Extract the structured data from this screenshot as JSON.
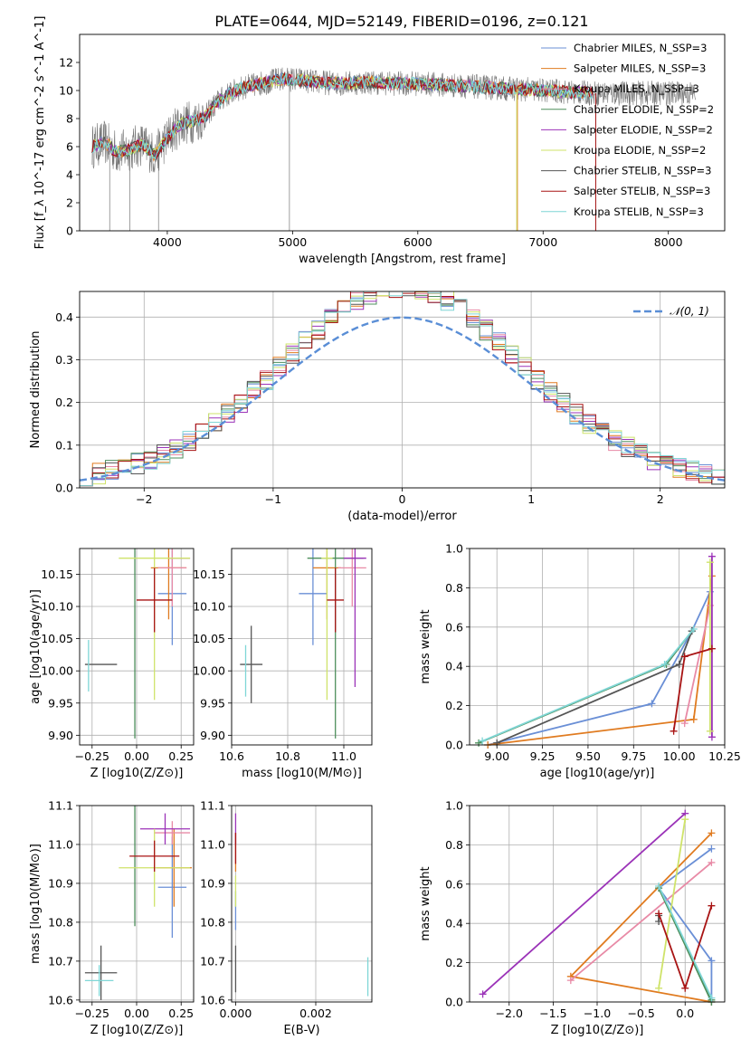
{
  "figure": {
    "title": "PLATE=0644, MJD=52149, FIBERID=0196, z=0.121"
  },
  "colors": {
    "chabrier_miles": "#6a8fd6",
    "salpeter_miles": "#e07b20",
    "kroupa_miles": "#e88aa6",
    "chabrier_elodie": "#4e8f5c",
    "salpeter_elodie": "#9b33b8",
    "kroupa_elodie": "#cfe36a",
    "chabrier_stelib": "#555555",
    "salpeter_stelib": "#a81414",
    "kroupa_stelib": "#7fd6d6",
    "observed": "#777777",
    "normal": "#5a8ed6",
    "grid": "#b0b0b0"
  },
  "chart_data": [
    {
      "id": "spectrum",
      "type": "line",
      "xlabel": "wavelength [Angstrom, rest frame]",
      "ylabel": "Flux [f_λ 10^-17 erg cm^-2 s^-1 A^-1]",
      "xlim": [
        3300,
        8450
      ],
      "ylim": [
        0,
        14
      ],
      "xticks": [
        4000,
        5000,
        6000,
        7000,
        8000
      ],
      "yticks": [
        0,
        2,
        4,
        6,
        8,
        10,
        12
      ],
      "grid": false,
      "legend_position": "top-right",
      "legend": [
        {
          "label": "Chabrier MILES, N_SSP=3",
          "color": "#6a8fd6"
        },
        {
          "label": "Salpeter MILES, N_SSP=3",
          "color": "#e07b20"
        },
        {
          "label": "Kroupa MILES, N_SSP=3",
          "color": "#e88aa6"
        },
        {
          "label": "Chabrier ELODIE, N_SSP=2",
          "color": "#4e8f5c"
        },
        {
          "label": "Salpeter ELODIE, N_SSP=2",
          "color": "#9b33b8"
        },
        {
          "label": "Kroupa ELODIE, N_SSP=2",
          "color": "#cfe36a"
        },
        {
          "label": "Chabrier STELIB, N_SSP=3",
          "color": "#555555"
        },
        {
          "label": "Salpeter STELIB, N_SSP=3",
          "color": "#a81414"
        },
        {
          "label": "Kroupa STELIB, N_SSP=3",
          "color": "#7fd6d6"
        }
      ],
      "model_curve": {
        "x": [
          3400,
          3500,
          3600,
          3700,
          3800,
          3900,
          4000,
          4100,
          4200,
          4300,
          4400,
          4500,
          4600,
          4700,
          4800,
          4900,
          5000,
          5200,
          5400,
          5600,
          5800,
          6000,
          6200,
          6400,
          6600,
          6800,
          7000,
          7200,
          7400
        ],
        "y": [
          6.0,
          6.3,
          5.6,
          5.8,
          6.2,
          5.4,
          6.6,
          7.6,
          7.8,
          8.1,
          9.2,
          9.8,
          10.2,
          10.4,
          10.6,
          10.8,
          10.8,
          10.6,
          10.5,
          10.6,
          10.5,
          10.5,
          10.4,
          10.3,
          10.2,
          10.1,
          10.0,
          9.9,
          9.8
        ]
      },
      "observed_range": {
        "xmin": 3400,
        "xmax": 8220
      }
    },
    {
      "id": "residuals",
      "type": "step-histogram",
      "xlabel": "(data-model)/error",
      "ylabel": "Normed distribution",
      "xlim": [
        -2.5,
        2.5
      ],
      "ylim": [
        0,
        0.46
      ],
      "xticks": [
        -2,
        -1,
        0,
        1,
        2
      ],
      "yticks": [
        0.0,
        0.1,
        0.2,
        0.3,
        0.4
      ],
      "grid": true,
      "legend_position": "top-right",
      "legend": [
        {
          "label": "𝒩(0, 1)",
          "color": "#5a8ed6",
          "style": "dashed"
        }
      ],
      "bin_width": 0.1,
      "reference_curve": "normal pdf, mean 0, sigma 1"
    },
    {
      "id": "age_vs_z",
      "type": "errorbar",
      "xlabel": "Z [log10(Z/Z⊙)]",
      "ylabel": "age  [log10(age/yr)]",
      "xlim": [
        -0.32,
        0.32
      ],
      "ylim": [
        9.885,
        10.19
      ],
      "xticks": [
        -0.25,
        0.0,
        0.25
      ],
      "yticks": [
        9.9,
        9.95,
        10.0,
        10.05,
        10.1,
        10.15
      ],
      "grid": true,
      "points": [
        {
          "series": "Chabrier MILES",
          "x": 0.2,
          "y": 10.12,
          "xerr": 0.08,
          "yerr": 0.08
        },
        {
          "series": "Salpeter MILES",
          "x": 0.18,
          "y": 10.16,
          "xerr": 0.1,
          "yerr": 0.08
        },
        {
          "series": "Kroupa MILES",
          "x": 0.2,
          "y": 10.16,
          "xerr": 0.08,
          "yerr": 0.06
        },
        {
          "series": "Chabrier ELODIE",
          "x": -0.01,
          "y": 10.175,
          "xerr": 0.0,
          "yerr": 0.28
        },
        {
          "series": "Salpeter ELODIE",
          "x": 0.24,
          "y": 10.175,
          "xerr": 0.06,
          "yerr": 0.0
        },
        {
          "series": "Kroupa ELODIE",
          "x": 0.1,
          "y": 10.175,
          "xerr": 0.2,
          "yerr": 0.22
        },
        {
          "series": "Chabrier STELIB",
          "x": -0.2,
          "y": 10.01,
          "xerr": 0.09,
          "yerr": 0.0
        },
        {
          "series": "Salpeter STELIB",
          "x": 0.1,
          "y": 10.11,
          "xerr": 0.1,
          "yerr": 0.05
        },
        {
          "series": "Kroupa STELIB",
          "x": -0.27,
          "y": 10.008,
          "xerr": 0.0,
          "yerr": 0.04
        }
      ]
    },
    {
      "id": "age_vs_mass",
      "type": "errorbar",
      "xlabel": "mass [log10(M/M⊙)]",
      "ylabel": "",
      "xlim": [
        10.6,
        11.1
      ],
      "ylim": [
        9.885,
        10.19
      ],
      "xticks": [
        10.6,
        10.8,
        11.0
      ],
      "yticks": [
        9.9,
        9.95,
        10.0,
        10.05,
        10.1,
        10.15
      ],
      "grid": true,
      "points": [
        {
          "series": "Chabrier MILES",
          "x": 10.89,
          "y": 10.12,
          "xerr": 0.05,
          "yerr": 0.08
        },
        {
          "series": "Salpeter MILES",
          "x": 10.94,
          "y": 10.16,
          "xerr": 0.05,
          "yerr": 0.08
        },
        {
          "series": "Kroupa MILES",
          "x": 11.03,
          "y": 10.16,
          "xerr": 0.05,
          "yerr": 0.06
        },
        {
          "series": "Chabrier ELODIE",
          "x": 10.97,
          "y": 10.175,
          "xerr": 0.1,
          "yerr": 0.28
        },
        {
          "series": "Salpeter ELODIE",
          "x": 11.04,
          "y": 10.175,
          "xerr": 0.04,
          "yerr": 0.2
        },
        {
          "series": "Kroupa ELODIE",
          "x": 10.94,
          "y": 10.175,
          "xerr": 0.02,
          "yerr": 0.22
        },
        {
          "series": "Chabrier STELIB",
          "x": 10.67,
          "y": 10.01,
          "xerr": 0.04,
          "yerr": 0.06
        },
        {
          "series": "Salpeter STELIB",
          "x": 10.97,
          "y": 10.11,
          "xerr": 0.03,
          "yerr": 0.05
        },
        {
          "series": "Kroupa STELIB",
          "x": 10.65,
          "y": 10.0,
          "xerr": 0.0,
          "yerr": 0.04
        }
      ]
    },
    {
      "id": "weight_vs_age",
      "type": "line",
      "xlabel": "age  [log10(age/yr)]",
      "ylabel": "mass weight",
      "xlim": [
        8.85,
        10.25
      ],
      "ylim": [
        0,
        1.0
      ],
      "xticks": [
        9.0,
        9.25,
        9.5,
        9.75,
        10.0,
        10.25
      ],
      "yticks": [
        0.0,
        0.2,
        0.4,
        0.6,
        0.8,
        1.0
      ],
      "grid": true,
      "series": [
        {
          "name": "Chabrier MILES",
          "x": [
            8.95,
            9.85,
            10.07,
            10.17
          ],
          "y": [
            0.0,
            0.21,
            0.58,
            0.78
          ]
        },
        {
          "name": "Salpeter MILES",
          "x": [
            8.95,
            10.08,
            10.18
          ],
          "y": [
            0.0,
            0.13,
            0.86
          ]
        },
        {
          "name": "Kroupa MILES",
          "x": [
            10.03,
            10.17
          ],
          "y": [
            0.11,
            0.71
          ]
        },
        {
          "name": "Chabrier ELODIE",
          "x": [
            8.9,
            9.93,
            10.07
          ],
          "y": [
            0.01,
            0.41,
            0.58
          ]
        },
        {
          "name": "Salpeter ELODIE",
          "x": [
            10.18,
            10.18
          ],
          "y": [
            0.04,
            0.96
          ]
        },
        {
          "name": "Kroupa ELODIE",
          "x": [
            10.17,
            10.17
          ],
          "y": [
            0.07,
            0.93
          ]
        },
        {
          "name": "Chabrier STELIB",
          "x": [
            9.0,
            10.0,
            10.07
          ],
          "y": [
            0.01,
            0.41,
            0.58
          ]
        },
        {
          "name": "Salpeter STELIB",
          "x": [
            9.97,
            10.03,
            10.18
          ],
          "y": [
            0.07,
            0.45,
            0.49
          ]
        },
        {
          "name": "Kroupa STELIB",
          "x": [
            8.92,
            9.92,
            10.08
          ],
          "y": [
            0.02,
            0.41,
            0.59
          ]
        }
      ]
    },
    {
      "id": "mass_vs_z",
      "type": "errorbar",
      "xlabel": "Z [log10(Z/Z⊙)]",
      "ylabel": "mass [log10(M/M⊙)]",
      "xlim": [
        -0.32,
        0.32
      ],
      "ylim": [
        10.595,
        11.1
      ],
      "xticks": [
        -0.25,
        0.0,
        0.25
      ],
      "yticks": [
        10.6,
        10.7,
        10.8,
        10.9,
        11.0,
        11.1
      ],
      "grid": true,
      "points": [
        {
          "series": "Chabrier MILES",
          "x": 0.2,
          "y": 10.89,
          "xerr": 0.08,
          "yerr": 0.13
        },
        {
          "series": "Salpeter MILES",
          "x": 0.21,
          "y": 10.94,
          "xerr": 0.1,
          "yerr": 0.1
        },
        {
          "series": "Kroupa MILES",
          "x": 0.2,
          "y": 11.03,
          "xerr": 0.1,
          "yerr": 0.03
        },
        {
          "series": "Chabrier ELODIE",
          "x": -0.01,
          "y": 10.97,
          "xerr": 0.0,
          "yerr": 0.18
        },
        {
          "series": "Salpeter ELODIE",
          "x": 0.16,
          "y": 11.04,
          "xerr": 0.14,
          "yerr": 0.04
        },
        {
          "series": "Kroupa ELODIE",
          "x": 0.1,
          "y": 10.94,
          "xerr": 0.2,
          "yerr": 0.1
        },
        {
          "series": "Chabrier STELIB",
          "x": -0.2,
          "y": 10.67,
          "xerr": 0.09,
          "yerr": 0.07
        },
        {
          "series": "Salpeter STELIB",
          "x": 0.1,
          "y": 10.97,
          "xerr": 0.14,
          "yerr": 0.04
        },
        {
          "series": "Kroupa STELIB",
          "x": -0.21,
          "y": 10.65,
          "xerr": 0.08,
          "yerr": 0.04
        }
      ]
    },
    {
      "id": "mass_vs_ebv",
      "type": "errorbar",
      "xlabel": "E(B-V)",
      "ylabel": "",
      "xlim": [
        -0.0001,
        0.0034
      ],
      "ylim": [
        10.595,
        11.1
      ],
      "xticks": [
        0.0,
        0.002
      ],
      "yticks": [
        10.6,
        10.7,
        10.8,
        10.9,
        11.0,
        11.1
      ],
      "grid": true,
      "points": [
        {
          "series": "Chabrier MILES",
          "x": 0.0,
          "y": 10.83,
          "xerr": 0.0,
          "yerr": 0.05
        },
        {
          "series": "Salpeter MILES",
          "x": 0.0,
          "y": 10.98,
          "xerr": 0.0,
          "yerr": 0.05
        },
        {
          "series": "Kroupa ELODIE",
          "x": 0.0,
          "y": 10.88,
          "xerr": 0.0,
          "yerr": 0.04
        },
        {
          "series": "Salpeter ELODIE",
          "x": 0.0,
          "y": 11.04,
          "xerr": 0.0,
          "yerr": 0.04
        },
        {
          "series": "Chabrier STELIB",
          "x": 0.0,
          "y": 10.68,
          "xerr": 0.0,
          "yerr": 0.06
        },
        {
          "series": "Salpeter STELIB",
          "x": 0.0,
          "y": 10.99,
          "xerr": 0.0,
          "yerr": 0.04
        },
        {
          "series": "Kroupa STELIB",
          "x": 0.0033,
          "y": 10.66,
          "xerr": 0.0,
          "yerr": 0.05
        }
      ]
    },
    {
      "id": "weight_vs_z",
      "type": "line",
      "xlabel": "Z [log10(Z/Z⊙)]",
      "ylabel": "mass weight",
      "xlim": [
        -2.45,
        0.45
      ],
      "ylim": [
        0,
        1.0
      ],
      "xticks": [
        -2.0,
        -1.5,
        -1.0,
        -0.5,
        0.0
      ],
      "yticks": [
        0.0,
        0.2,
        0.4,
        0.6,
        0.8,
        1.0
      ],
      "grid": true,
      "series": [
        {
          "name": "Chabrier MILES",
          "x": [
            0.3,
            0.3,
            -0.3,
            0.3
          ],
          "y": [
            0.0,
            0.21,
            0.58,
            0.78
          ]
        },
        {
          "name": "Salpeter MILES",
          "x": [
            0.3,
            -1.3,
            0.3
          ],
          "y": [
            0.0,
            0.13,
            0.86
          ]
        },
        {
          "name": "Kroupa MILES",
          "x": [
            -1.3,
            0.3
          ],
          "y": [
            0.11,
            0.71
          ]
        },
        {
          "name": "Chabrier ELODIE",
          "x": [
            0.3,
            -0.3,
            0.3
          ],
          "y": [
            0.01,
            0.58,
            0.0
          ]
        },
        {
          "name": "Salpeter ELODIE",
          "x": [
            -2.3,
            0.0
          ],
          "y": [
            0.04,
            0.96
          ]
        },
        {
          "name": "Kroupa ELODIE",
          "x": [
            -0.3,
            0.0
          ],
          "y": [
            0.07,
            0.93
          ]
        },
        {
          "name": "Chabrier STELIB",
          "x": [
            -0.3,
            -0.3
          ],
          "y": [
            0.41,
            0.44
          ]
        },
        {
          "name": "Salpeter STELIB",
          "x": [
            -0.3,
            0.0,
            0.3
          ],
          "y": [
            0.45,
            0.07,
            0.49
          ]
        },
        {
          "name": "Kroupa STELIB",
          "x": [
            -0.3,
            0.3
          ],
          "y": [
            0.59,
            0.02
          ]
        }
      ]
    }
  ]
}
